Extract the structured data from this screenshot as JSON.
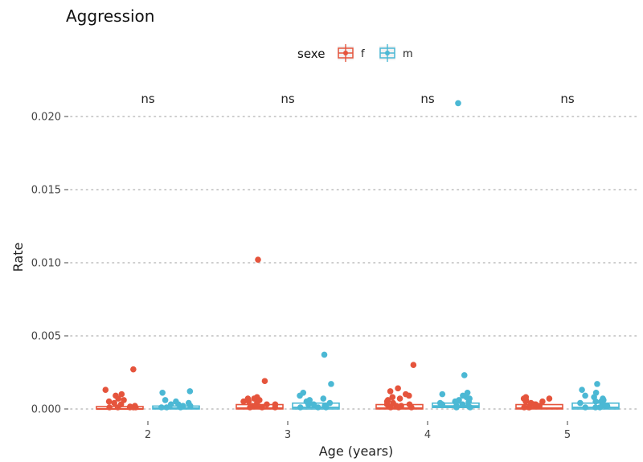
{
  "chart_data": {
    "type": "boxplot",
    "title": "Aggression",
    "xlabel": "Age (years)",
    "ylabel": "Rate",
    "categories": [
      "2",
      "3",
      "4",
      "5"
    ],
    "ylim": [
      0,
      0.021
    ],
    "yticks": [
      "0.000",
      "0.005",
      "0.010",
      "0.015",
      "0.020"
    ],
    "grid": "horizontal dotted",
    "legend": {
      "title": "sexe",
      "placement": "top-center",
      "entries": [
        "f",
        "m"
      ]
    },
    "colors": {
      "f": "#E5543C",
      "m": "#4BB8D4"
    },
    "annotations": [
      "ns",
      "ns",
      "ns",
      "ns"
    ],
    "series": [
      {
        "name": "f",
        "boxes": [
          {
            "x": "2",
            "q1": 0.0,
            "median": 0.0,
            "q3": 5e-05
          },
          {
            "x": "3",
            "q1": 0.0,
            "median": 5e-05,
            "q3": 0.0003
          },
          {
            "x": "4",
            "q1": 0.0,
            "median": 5e-05,
            "q3": 0.0003
          },
          {
            "x": "5",
            "q1": 0.0,
            "median": 5e-05,
            "q3": 0.0003
          }
        ],
        "points": [
          {
            "x": "2",
            "y": [
              0.0026,
              0.0012,
              0.0009,
              0.0008,
              0.0006,
              0.0005,
              0.0004,
              0.0003,
              0.0002,
              0.0001,
              5e-05,
              0.0,
              0.0,
              0.0,
              0.0,
              0.0
            ]
          },
          {
            "x": "3",
            "y": [
              0.0101,
              0.0018,
              0.0007,
              0.0006,
              0.0006,
              0.0005,
              0.0004,
              0.0004,
              0.0003,
              0.0002,
              0.0002,
              0.0001,
              0.0001,
              0.0,
              0.0,
              0.0
            ]
          },
          {
            "x": "4",
            "y": [
              0.0029,
              0.0013,
              0.0011,
              0.0009,
              0.0008,
              0.0007,
              0.0006,
              0.0005,
              0.0004,
              0.0003,
              0.0002,
              0.0002,
              0.0001,
              0.0001,
              0.0,
              0.0,
              0.0
            ]
          },
          {
            "x": "5",
            "y": [
              0.0007,
              0.0006,
              0.0006,
              0.0005,
              0.0004,
              0.0004,
              0.0003,
              0.0002,
              0.0002,
              0.0001,
              0.0001,
              0.0,
              0.0,
              0.0
            ]
          }
        ]
      },
      {
        "name": "m",
        "boxes": [
          {
            "x": "2",
            "q1": 0.0,
            "median": 5e-05,
            "q3": 0.0002
          },
          {
            "x": "3",
            "q1": 0.0,
            "median": 0.0001,
            "q3": 0.0004
          },
          {
            "x": "4",
            "q1": 0.0001,
            "median": 0.0002,
            "q3": 0.0004
          },
          {
            "x": "5",
            "q1": 0.0,
            "median": 0.0001,
            "q3": 0.0004
          }
        ],
        "points": [
          {
            "x": "2",
            "y": [
              0.0011,
              0.001,
              0.0005,
              0.0004,
              0.0003,
              0.0002,
              0.0002,
              0.0001,
              0.0001,
              0.0,
              0.0,
              0.0
            ]
          },
          {
            "x": "3",
            "y": [
              0.0036,
              0.0016,
              0.001,
              0.0008,
              0.0006,
              0.0005,
              0.0004,
              0.0003,
              0.0002,
              0.0002,
              0.0001,
              0.0001,
              0.0,
              0.0,
              0.0
            ]
          },
          {
            "x": "4",
            "y": [
              0.0208,
              0.0022,
              0.001,
              0.0009,
              0.0008,
              0.0007,
              0.0006,
              0.0005,
              0.0004,
              0.0004,
              0.0003,
              0.0002,
              0.0002,
              0.0001,
              0.0001,
              0.0,
              0.0
            ]
          },
          {
            "x": "5",
            "y": [
              0.0016,
              0.0012,
              0.001,
              0.0008,
              0.0007,
              0.0006,
              0.0005,
              0.0004,
              0.0004,
              0.0003,
              0.0002,
              0.0001,
              0.0001,
              0.0,
              0.0,
              0.0
            ]
          }
        ]
      }
    ]
  }
}
